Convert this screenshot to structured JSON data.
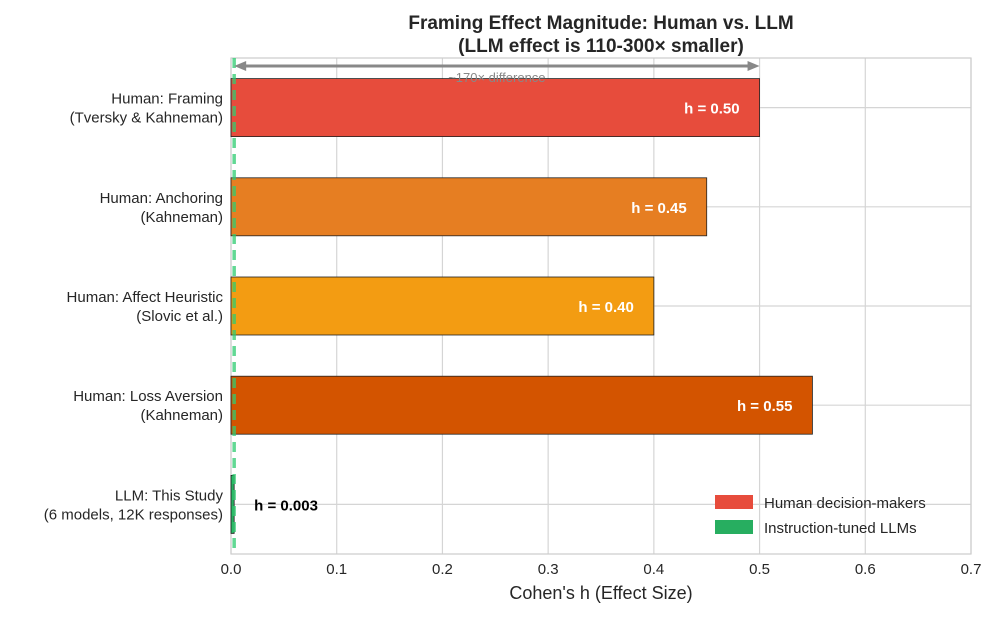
{
  "chart_data": {
    "type": "bar",
    "orientation": "horizontal",
    "title": "Framing Effect Magnitude: Human vs. LLM",
    "subtitle": "(LLM effect is 110-300× smaller)",
    "xlabel": "Cohen's h (Effect Size)",
    "ylabel": "",
    "xlim": [
      0,
      0.7
    ],
    "xticks": [
      "0.0",
      "0.1",
      "0.2",
      "0.3",
      "0.4",
      "0.5",
      "0.6",
      "0.7"
    ],
    "grid": true,
    "categories": [
      [
        "Human: Framing",
        "(Tversky & Kahneman)"
      ],
      [
        "Human: Anchoring",
        "(Kahneman)"
      ],
      [
        "Human: Affect Heuristic",
        "(Slovic et al.)"
      ],
      [
        "Human: Loss Aversion",
        "(Kahneman)"
      ],
      [
        "LLM: This Study",
        "(6 models, 12K responses)"
      ]
    ],
    "values": [
      0.5,
      0.45,
      0.4,
      0.55,
      0.003
    ],
    "data_labels": [
      "h = 0.50",
      "h = 0.45",
      "h = 0.40",
      "h = 0.55",
      "h = 0.003"
    ],
    "colors": [
      "#e74c3c",
      "#e67e22",
      "#f39c12",
      "#d35400",
      "#27ae60"
    ],
    "reference_line": {
      "value": 0.003,
      "style": "dashed",
      "color": "#2ecc71"
    },
    "annotation": {
      "text": "~170× difference",
      "from": 0.003,
      "to": 0.5,
      "color": "#888888"
    },
    "legend": {
      "placement": "lower-right",
      "entries": [
        {
          "label": "Human decision-makers",
          "color": "#e74c3c"
        },
        {
          "label": "Instruction-tuned LLMs",
          "color": "#27ae60"
        }
      ]
    }
  }
}
